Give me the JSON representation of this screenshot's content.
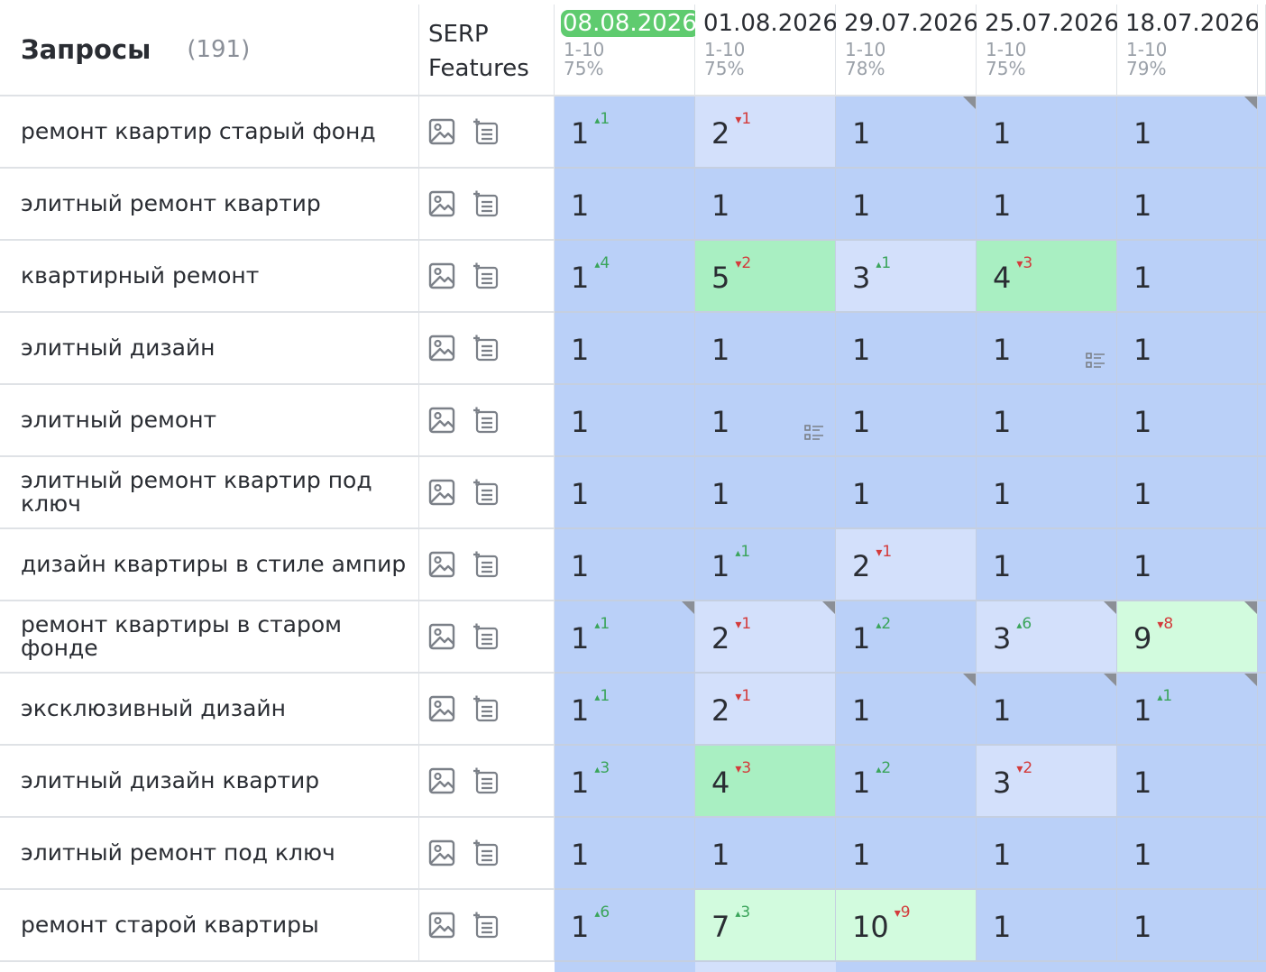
{
  "header": {
    "queries_label": "Запросы",
    "queries_count": "(191)",
    "serp_line1": "SERP",
    "serp_line2": "Features"
  },
  "dates": [
    {
      "date": "08.08.2026",
      "range": "1-10",
      "percent": "75%",
      "current": true
    },
    {
      "date": "01.08.2026",
      "range": "1-10",
      "percent": "75%",
      "current": false
    },
    {
      "date": "29.07.2026",
      "range": "1-10",
      "percent": "78%",
      "current": false
    },
    {
      "date": "25.07.2026",
      "range": "1-10",
      "percent": "75%",
      "current": false
    },
    {
      "date": "18.07.2026",
      "range": "1-10",
      "percent": "79%",
      "current": false
    }
  ],
  "serp_icons": [
    "image-icon",
    "snippet-icon"
  ],
  "colors": {
    "current_date": "#5fcb6f",
    "position_top": "#bad0f8",
    "position_changed": "#d3e0fb",
    "position_green": "#a9efc2",
    "position_light_green": "#d2fbde",
    "delta_up": "#3aa45a",
    "delta_down": "#d33b3b"
  },
  "rows": [
    {
      "query": "ремонт квартир старый фонд",
      "cells": [
        {
          "pos": "1",
          "delta": "1",
          "dir": "up",
          "level": 1,
          "corner": false,
          "snippet": false
        },
        {
          "pos": "2",
          "delta": "1",
          "dir": "down",
          "level": 2,
          "corner": false,
          "snippet": false
        },
        {
          "pos": "1",
          "delta": "",
          "dir": "",
          "level": 1,
          "corner": true,
          "snippet": false
        },
        {
          "pos": "1",
          "delta": "",
          "dir": "",
          "level": 1,
          "corner": false,
          "snippet": false
        },
        {
          "pos": "1",
          "delta": "",
          "dir": "",
          "level": 1,
          "corner": true,
          "snippet": false
        }
      ]
    },
    {
      "query": "элитный ремонт квартир",
      "cells": [
        {
          "pos": "1",
          "delta": "",
          "dir": "",
          "level": 1,
          "corner": false,
          "snippet": false
        },
        {
          "pos": "1",
          "delta": "",
          "dir": "",
          "level": 1,
          "corner": false,
          "snippet": false
        },
        {
          "pos": "1",
          "delta": "",
          "dir": "",
          "level": 1,
          "corner": false,
          "snippet": false
        },
        {
          "pos": "1",
          "delta": "",
          "dir": "",
          "level": 1,
          "corner": false,
          "snippet": false
        },
        {
          "pos": "1",
          "delta": "",
          "dir": "",
          "level": 1,
          "corner": false,
          "snippet": false
        }
      ]
    },
    {
      "query": "квартирный ремонт",
      "cells": [
        {
          "pos": "1",
          "delta": "4",
          "dir": "up",
          "level": 1,
          "corner": false,
          "snippet": false
        },
        {
          "pos": "5",
          "delta": "2",
          "dir": "down",
          "level": 3,
          "corner": false,
          "snippet": false
        },
        {
          "pos": "3",
          "delta": "1",
          "dir": "up",
          "level": 2,
          "corner": false,
          "snippet": false
        },
        {
          "pos": "4",
          "delta": "3",
          "dir": "down",
          "level": 3,
          "corner": false,
          "snippet": false
        },
        {
          "pos": "1",
          "delta": "",
          "dir": "",
          "level": 1,
          "corner": false,
          "snippet": false
        }
      ]
    },
    {
      "query": "элитный дизайн",
      "cells": [
        {
          "pos": "1",
          "delta": "",
          "dir": "",
          "level": 1,
          "corner": false,
          "snippet": false
        },
        {
          "pos": "1",
          "delta": "",
          "dir": "",
          "level": 1,
          "corner": false,
          "snippet": false
        },
        {
          "pos": "1",
          "delta": "",
          "dir": "",
          "level": 1,
          "corner": false,
          "snippet": false
        },
        {
          "pos": "1",
          "delta": "",
          "dir": "",
          "level": 1,
          "corner": false,
          "snippet": true
        },
        {
          "pos": "1",
          "delta": "",
          "dir": "",
          "level": 1,
          "corner": false,
          "snippet": false
        }
      ]
    },
    {
      "query": "элитный ремонт",
      "cells": [
        {
          "pos": "1",
          "delta": "",
          "dir": "",
          "level": 1,
          "corner": false,
          "snippet": false
        },
        {
          "pos": "1",
          "delta": "",
          "dir": "",
          "level": 1,
          "corner": false,
          "snippet": true
        },
        {
          "pos": "1",
          "delta": "",
          "dir": "",
          "level": 1,
          "corner": false,
          "snippet": false
        },
        {
          "pos": "1",
          "delta": "",
          "dir": "",
          "level": 1,
          "corner": false,
          "snippet": false
        },
        {
          "pos": "1",
          "delta": "",
          "dir": "",
          "level": 1,
          "corner": false,
          "snippet": false
        }
      ]
    },
    {
      "query": "элитный ремонт квартир под ключ",
      "cells": [
        {
          "pos": "1",
          "delta": "",
          "dir": "",
          "level": 1,
          "corner": false,
          "snippet": false
        },
        {
          "pos": "1",
          "delta": "",
          "dir": "",
          "level": 1,
          "corner": false,
          "snippet": false
        },
        {
          "pos": "1",
          "delta": "",
          "dir": "",
          "level": 1,
          "corner": false,
          "snippet": false
        },
        {
          "pos": "1",
          "delta": "",
          "dir": "",
          "level": 1,
          "corner": false,
          "snippet": false
        },
        {
          "pos": "1",
          "delta": "",
          "dir": "",
          "level": 1,
          "corner": false,
          "snippet": false
        }
      ]
    },
    {
      "query": "дизайн квартиры в стиле ампир",
      "cells": [
        {
          "pos": "1",
          "delta": "",
          "dir": "",
          "level": 1,
          "corner": false,
          "snippet": false
        },
        {
          "pos": "1",
          "delta": "1",
          "dir": "up",
          "level": 1,
          "corner": false,
          "snippet": false
        },
        {
          "pos": "2",
          "delta": "1",
          "dir": "down",
          "level": 2,
          "corner": false,
          "snippet": false
        },
        {
          "pos": "1",
          "delta": "",
          "dir": "",
          "level": 1,
          "corner": false,
          "snippet": false
        },
        {
          "pos": "1",
          "delta": "",
          "dir": "",
          "level": 1,
          "corner": false,
          "snippet": false
        }
      ]
    },
    {
      "query": "ремонт квартиры в старом фонде",
      "cells": [
        {
          "pos": "1",
          "delta": "1",
          "dir": "up",
          "level": 1,
          "corner": true,
          "snippet": false
        },
        {
          "pos": "2",
          "delta": "1",
          "dir": "down",
          "level": 2,
          "corner": true,
          "snippet": false
        },
        {
          "pos": "1",
          "delta": "2",
          "dir": "up",
          "level": 1,
          "corner": false,
          "snippet": false
        },
        {
          "pos": "3",
          "delta": "6",
          "dir": "up",
          "level": 2,
          "corner": true,
          "snippet": false
        },
        {
          "pos": "9",
          "delta": "8",
          "dir": "down",
          "level": 4,
          "corner": true,
          "snippet": false
        }
      ]
    },
    {
      "query": "эксклюзивный дизайн",
      "cells": [
        {
          "pos": "1",
          "delta": "1",
          "dir": "up",
          "level": 1,
          "corner": false,
          "snippet": false
        },
        {
          "pos": "2",
          "delta": "1",
          "dir": "down",
          "level": 2,
          "corner": false,
          "snippet": false
        },
        {
          "pos": "1",
          "delta": "",
          "dir": "",
          "level": 1,
          "corner": true,
          "snippet": false
        },
        {
          "pos": "1",
          "delta": "",
          "dir": "",
          "level": 1,
          "corner": true,
          "snippet": false
        },
        {
          "pos": "1",
          "delta": "1",
          "dir": "up",
          "level": 1,
          "corner": true,
          "snippet": false
        }
      ]
    },
    {
      "query": "элитный дизайн квартир",
      "cells": [
        {
          "pos": "1",
          "delta": "3",
          "dir": "up",
          "level": 1,
          "corner": false,
          "snippet": false
        },
        {
          "pos": "4",
          "delta": "3",
          "dir": "down",
          "level": 3,
          "corner": false,
          "snippet": false
        },
        {
          "pos": "1",
          "delta": "2",
          "dir": "up",
          "level": 1,
          "corner": false,
          "snippet": false
        },
        {
          "pos": "3",
          "delta": "2",
          "dir": "down",
          "level": 2,
          "corner": false,
          "snippet": false
        },
        {
          "pos": "1",
          "delta": "",
          "dir": "",
          "level": 1,
          "corner": false,
          "snippet": false
        }
      ]
    },
    {
      "query": "элитный ремонт под ключ",
      "cells": [
        {
          "pos": "1",
          "delta": "",
          "dir": "",
          "level": 1,
          "corner": false,
          "snippet": false
        },
        {
          "pos": "1",
          "delta": "",
          "dir": "",
          "level": 1,
          "corner": false,
          "snippet": false
        },
        {
          "pos": "1",
          "delta": "",
          "dir": "",
          "level": 1,
          "corner": false,
          "snippet": false
        },
        {
          "pos": "1",
          "delta": "",
          "dir": "",
          "level": 1,
          "corner": false,
          "snippet": false
        },
        {
          "pos": "1",
          "delta": "",
          "dir": "",
          "level": 1,
          "corner": false,
          "snippet": false
        }
      ]
    },
    {
      "query": "ремонт старой квартиры",
      "cells": [
        {
          "pos": "1",
          "delta": "6",
          "dir": "up",
          "level": 1,
          "corner": false,
          "snippet": false
        },
        {
          "pos": "7",
          "delta": "3",
          "dir": "up",
          "level": 4,
          "corner": false,
          "snippet": false
        },
        {
          "pos": "10",
          "delta": "9",
          "dir": "down",
          "level": 4,
          "corner": false,
          "snippet": false
        },
        {
          "pos": "1",
          "delta": "",
          "dir": "",
          "level": 1,
          "corner": false,
          "snippet": false
        },
        {
          "pos": "1",
          "delta": "",
          "dir": "",
          "level": 1,
          "corner": false,
          "snippet": false
        }
      ]
    }
  ],
  "partial_row_levels": [
    1,
    2,
    1,
    1,
    1
  ]
}
